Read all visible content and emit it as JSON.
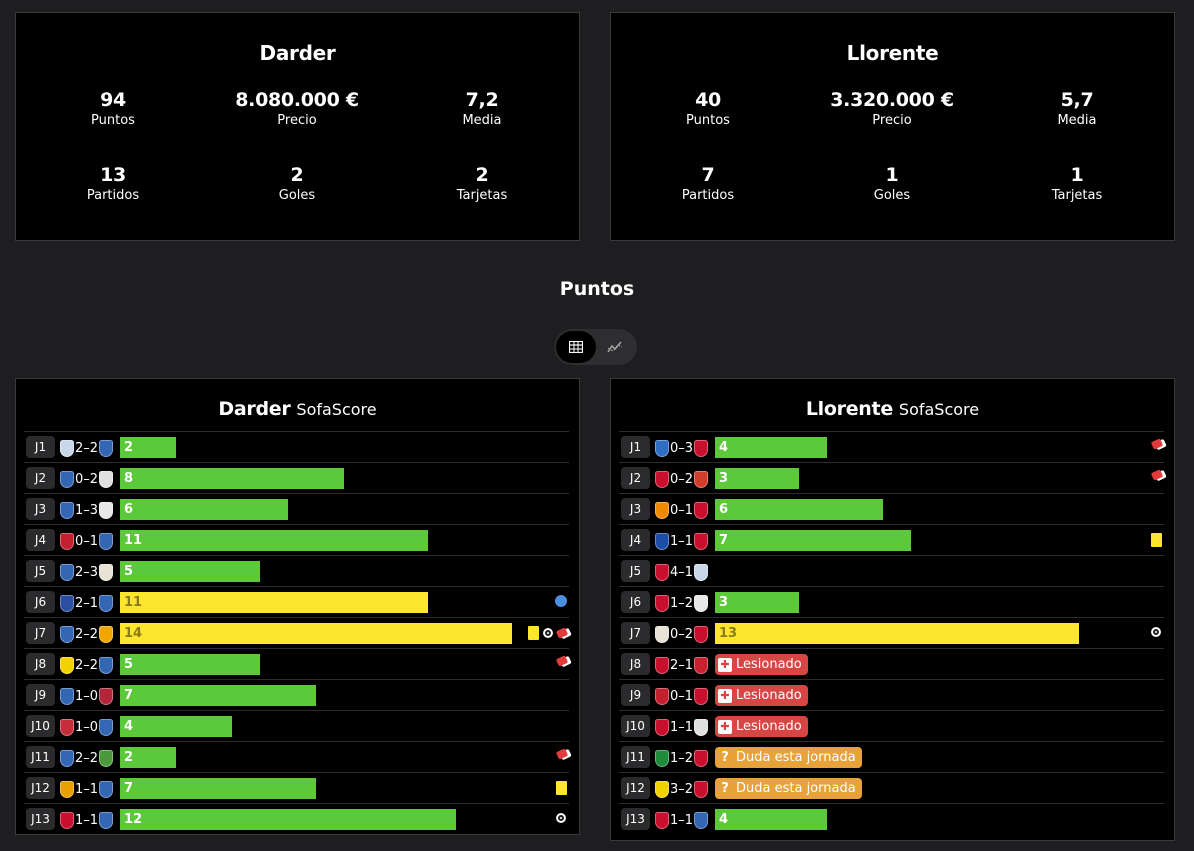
{
  "colors": {
    "green": "#5cc93a",
    "yellow": "#fde62d",
    "injury": "#d84545",
    "doubt": "#e8a23a"
  },
  "left_summary": {
    "name": "Darder",
    "stats": [
      {
        "value": "94",
        "label": "Puntos"
      },
      {
        "value": "8.080.000 €",
        "label": "Precio"
      },
      {
        "value": "7,2",
        "label": "Media"
      },
      {
        "value": "13",
        "label": "Partidos"
      },
      {
        "value": "2",
        "label": "Goles"
      },
      {
        "value": "2",
        "label": "Tarjetas"
      }
    ]
  },
  "right_summary": {
    "name": "Llorente",
    "stats": [
      {
        "value": "40",
        "label": "Puntos"
      },
      {
        "value": "3.320.000 €",
        "label": "Precio"
      },
      {
        "value": "5,7",
        "label": "Media"
      },
      {
        "value": "7",
        "label": "Partidos"
      },
      {
        "value": "1",
        "label": "Goles"
      },
      {
        "value": "1",
        "label": "Tarjetas"
      }
    ]
  },
  "section_title": "Puntos",
  "view_toggle": {
    "active": "table-icon",
    "inactive": "chart-line-icon"
  },
  "left_points": {
    "name": "Darder",
    "source": "SofaScore",
    "rows": [
      {
        "round": "J1",
        "score": "2–2",
        "home": "#c9d7ea",
        "away": "#3366b3",
        "points": 2,
        "status": "green",
        "events": []
      },
      {
        "round": "J2",
        "score": "0–2",
        "home": "#3366b3",
        "away": "#e0e0e0",
        "points": 8,
        "status": "green",
        "events": []
      },
      {
        "round": "J3",
        "score": "1–3",
        "home": "#3366b3",
        "away": "#e8e8e8",
        "points": 6,
        "status": "green",
        "events": []
      },
      {
        "round": "J4",
        "score": "0–1",
        "home": "#c21f2f",
        "away": "#3366b3",
        "points": 11,
        "status": "green",
        "events": []
      },
      {
        "round": "J5",
        "score": "2–3",
        "home": "#3366b3",
        "away": "#e9e2d6",
        "points": 5,
        "status": "green",
        "events": []
      },
      {
        "round": "J6",
        "score": "2–1",
        "home": "#2a4ea0",
        "away": "#3366b3",
        "points": 11,
        "status": "yellow",
        "events": [
          "sub-in-icon"
        ]
      },
      {
        "round": "J7",
        "score": "2–2",
        "home": "#3366b3",
        "away": "#f0a500",
        "points": 14,
        "status": "yellow",
        "events": [
          "yellow-card-icon",
          "ball-icon",
          "red-boot-icon"
        ]
      },
      {
        "round": "J8",
        "score": "2–2",
        "home": "#f3d100",
        "away": "#3366b3",
        "points": 5,
        "status": "green",
        "events": [
          "red-boot-icon"
        ]
      },
      {
        "round": "J9",
        "score": "1–0",
        "home": "#3366b3",
        "away": "#b3263a",
        "points": 7,
        "status": "green",
        "events": []
      },
      {
        "round": "J10",
        "score": "1–0",
        "home": "#c52d3a",
        "away": "#3366b3",
        "points": 4,
        "status": "green",
        "events": []
      },
      {
        "round": "J11",
        "score": "2–2",
        "home": "#3366b3",
        "away": "#4a9a3c",
        "points": 2,
        "status": "green",
        "events": [
          "red-boot-icon"
        ]
      },
      {
        "round": "J12",
        "score": "1–1",
        "home": "#e8a000",
        "away": "#3366b3",
        "points": 7,
        "status": "green",
        "events": [
          "yellow-card-icon"
        ]
      },
      {
        "round": "J13",
        "score": "1–1",
        "home": "#c8102e",
        "away": "#3366b3",
        "points": 12,
        "status": "green",
        "events": [
          "ball-icon"
        ]
      }
    ]
  },
  "right_points": {
    "name": "Llorente",
    "source": "SofaScore",
    "rows": [
      {
        "round": "J1",
        "score": "0–3",
        "home": "#2e6ec4",
        "away": "#c8102e",
        "points": 4,
        "status": "green",
        "events": [
          "red-boot-icon"
        ]
      },
      {
        "round": "J2",
        "score": "0–2",
        "home": "#c8102e",
        "away": "#d23c2a",
        "points": 3,
        "status": "green",
        "events": [
          "red-boot-icon"
        ]
      },
      {
        "round": "J3",
        "score": "0–1",
        "home": "#f08a00",
        "away": "#c8102e",
        "points": 6,
        "status": "green",
        "events": []
      },
      {
        "round": "J4",
        "score": "1–1",
        "home": "#1c4ea8",
        "away": "#c8102e",
        "points": 7,
        "status": "green",
        "events": [
          "yellow-card-icon"
        ]
      },
      {
        "round": "J5",
        "score": "4–1",
        "home": "#c8102e",
        "away": "#c9d7ea",
        "points": null,
        "status": "none",
        "events": []
      },
      {
        "round": "J6",
        "score": "1–2",
        "home": "#c8102e",
        "away": "#e8e8e8",
        "points": 3,
        "status": "green",
        "events": []
      },
      {
        "round": "J7",
        "score": "0–2",
        "home": "#e9e2d6",
        "away": "#c8102e",
        "points": 13,
        "status": "yellow",
        "events": [
          "ball-icon"
        ]
      },
      {
        "round": "J8",
        "score": "2–1",
        "home": "#c8102e",
        "away": "#c8202f",
        "points": null,
        "status": "injury",
        "label": "Lesionado",
        "events": []
      },
      {
        "round": "J9",
        "score": "0–1",
        "home": "#c21f2f",
        "away": "#c8102e",
        "points": null,
        "status": "injury",
        "label": "Lesionado",
        "events": []
      },
      {
        "round": "J10",
        "score": "1–1",
        "home": "#c8102e",
        "away": "#e0e0e0",
        "points": null,
        "status": "injury",
        "label": "Lesionado",
        "events": []
      },
      {
        "round": "J11",
        "score": "1–2",
        "home": "#1e8b3a",
        "away": "#c8102e",
        "points": null,
        "status": "doubt",
        "label": "Duda esta jornada",
        "events": []
      },
      {
        "round": "J12",
        "score": "3–2",
        "home": "#f3d100",
        "away": "#c8102e",
        "points": null,
        "status": "doubt",
        "label": "Duda esta jornada",
        "events": []
      },
      {
        "round": "J13",
        "score": "1–1",
        "home": "#c8102e",
        "away": "#3366b3",
        "points": 4,
        "status": "green",
        "events": []
      }
    ]
  }
}
